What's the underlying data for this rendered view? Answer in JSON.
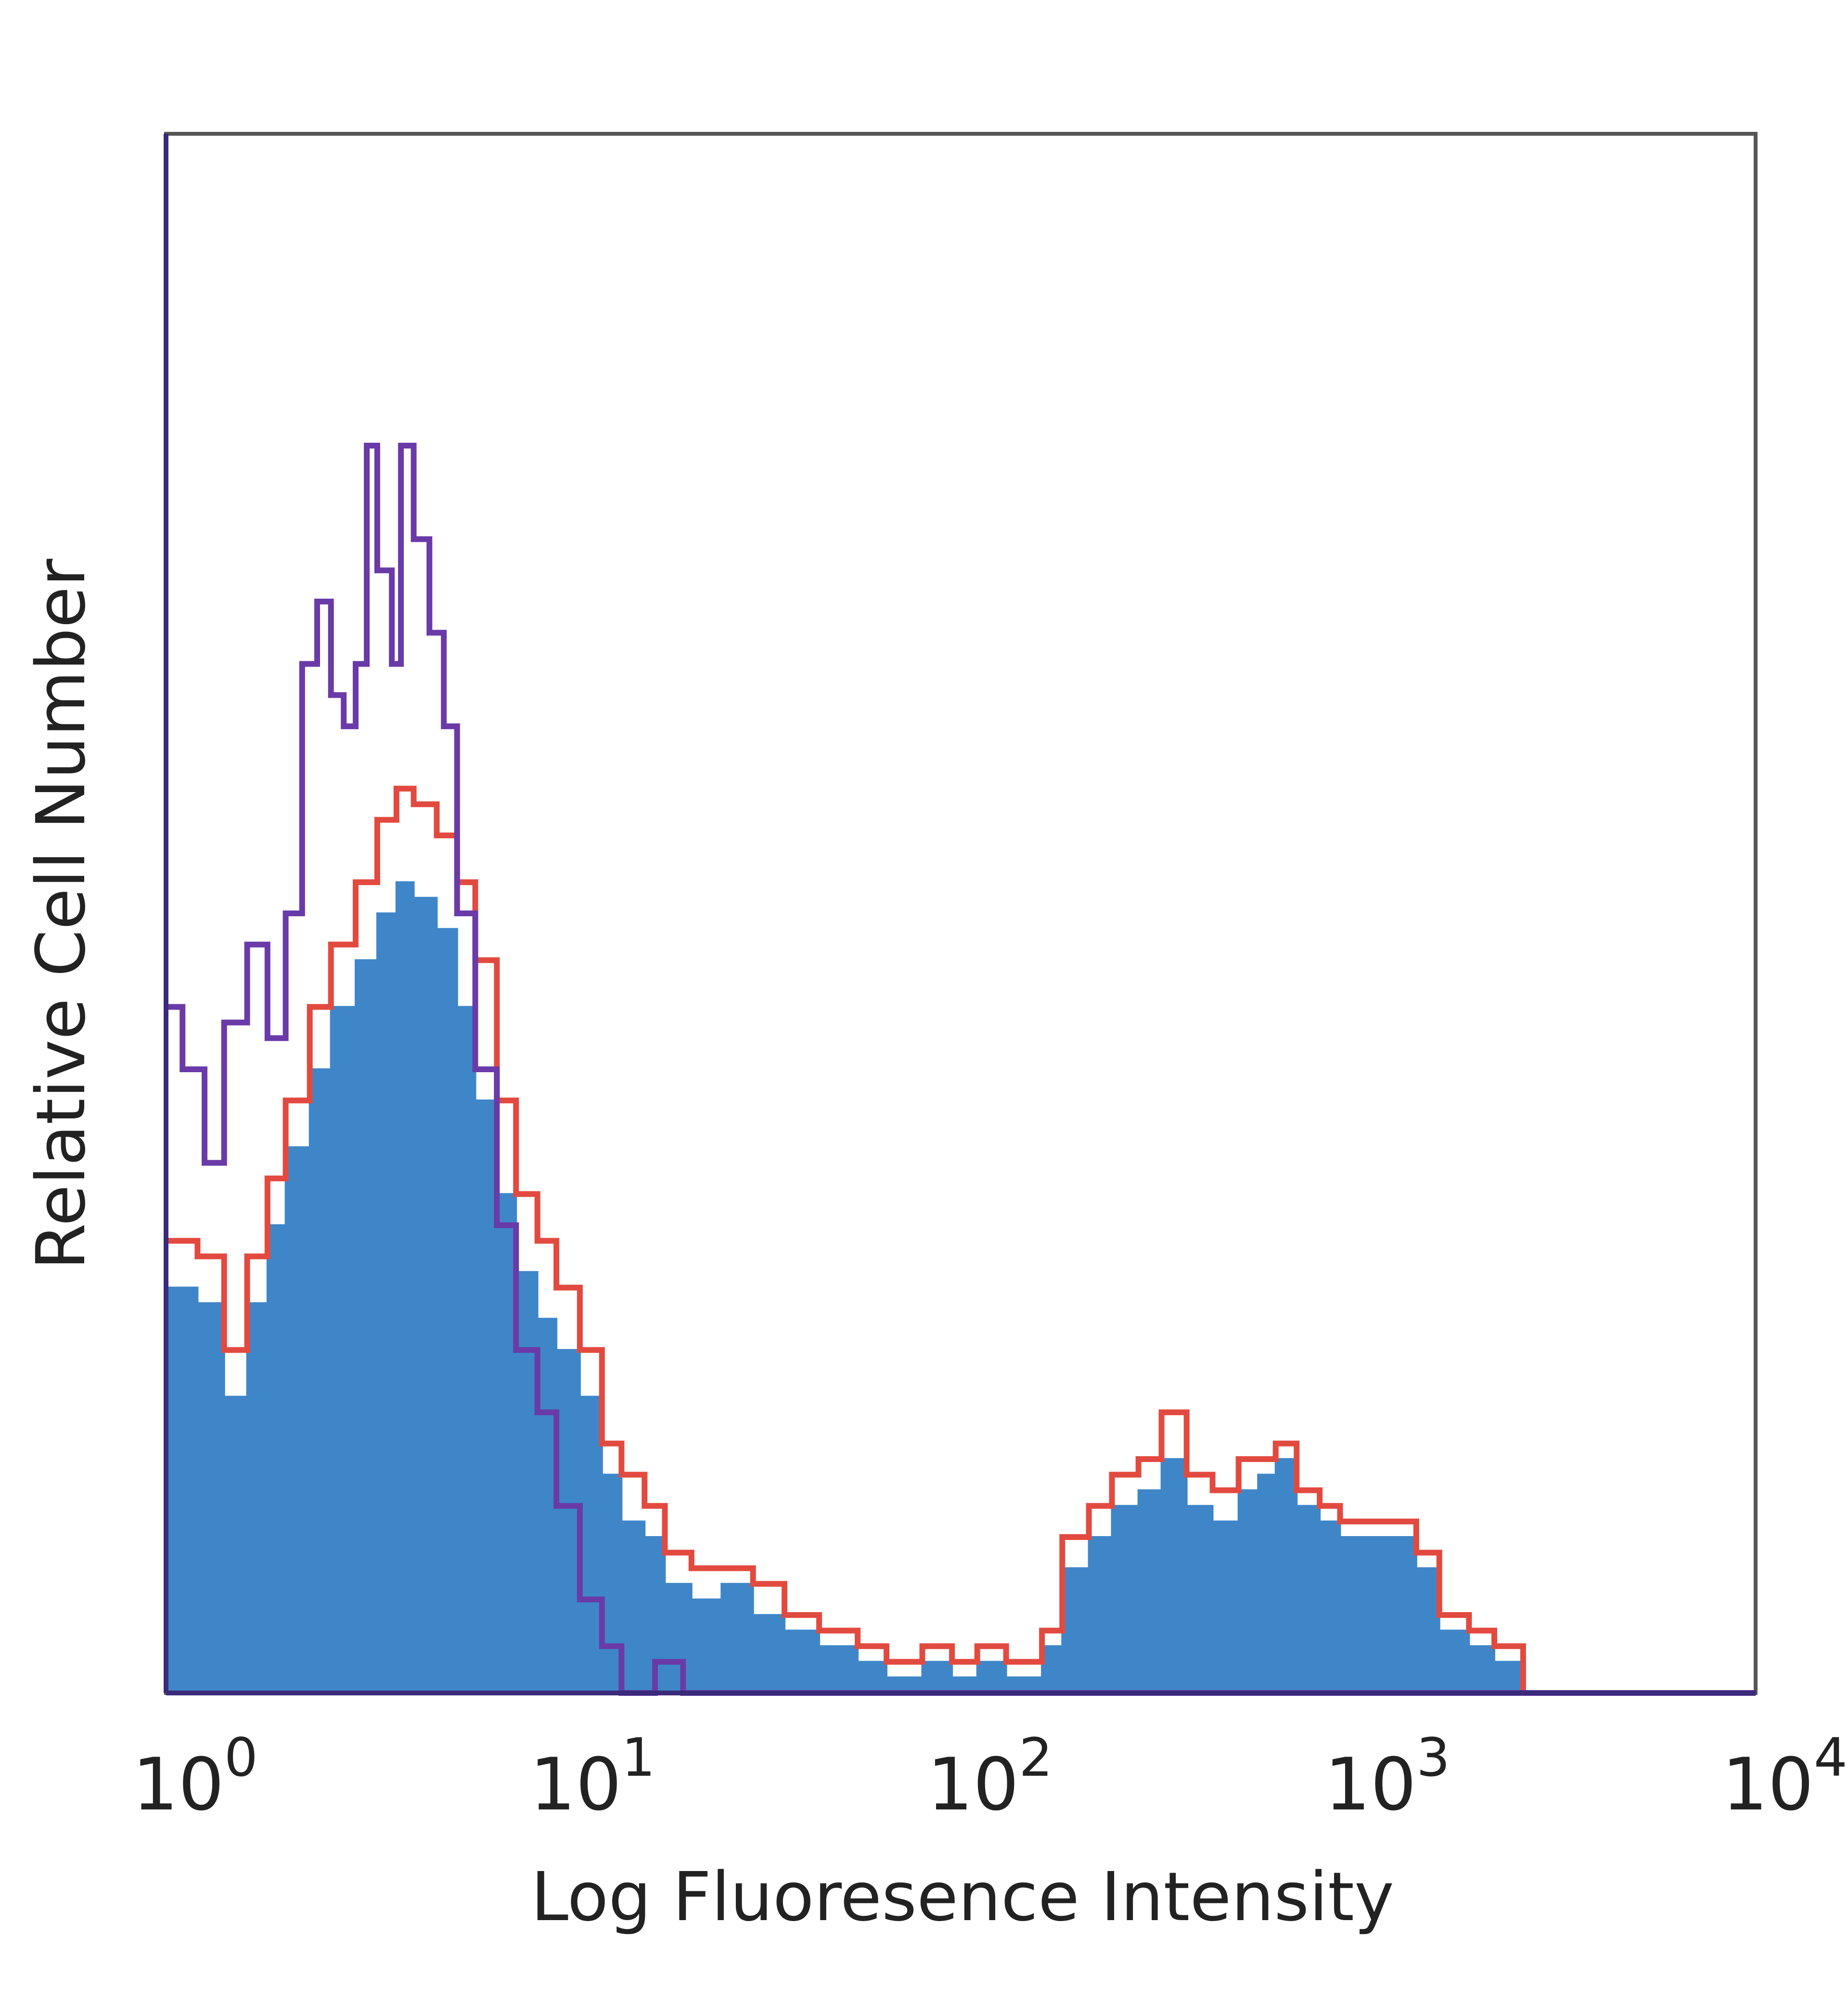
{
  "chart_data": {
    "type": "area",
    "xlabel": "Log Fluoresence Intensity",
    "ylabel": "Relative Cell Number",
    "xscale": "log",
    "xlim": [
      1,
      10000
    ],
    "ylim": [
      0,
      1
    ],
    "x_ticks": [
      {
        "value": 1,
        "base": "10",
        "exp": "0"
      },
      {
        "value": 10,
        "base": "10",
        "exp": "1"
      },
      {
        "value": 100,
        "base": "10",
        "exp": "2"
      },
      {
        "value": 1000,
        "base": "10",
        "exp": "3"
      },
      {
        "value": 10000,
        "base": "10",
        "exp": "4"
      }
    ],
    "grid": false,
    "legend": "none",
    "series": [
      {
        "style": "filled",
        "color": "#3f86c9",
        "points": [
          [
            1.0,
            0.26
          ],
          [
            1.2,
            0.25
          ],
          [
            1.4,
            0.19
          ],
          [
            1.6,
            0.25
          ],
          [
            1.8,
            0.3
          ],
          [
            2.0,
            0.35
          ],
          [
            2.3,
            0.4
          ],
          [
            2.6,
            0.44
          ],
          [
            3.0,
            0.47
          ],
          [
            3.4,
            0.5
          ],
          [
            3.8,
            0.52
          ],
          [
            4.2,
            0.51
          ],
          [
            4.8,
            0.49
          ],
          [
            5.4,
            0.44
          ],
          [
            6.0,
            0.38
          ],
          [
            6.8,
            0.32
          ],
          [
            7.6,
            0.27
          ],
          [
            8.6,
            0.24
          ],
          [
            9.6,
            0.22
          ],
          [
            11,
            0.19
          ],
          [
            12.5,
            0.14
          ],
          [
            14,
            0.11
          ],
          [
            16,
            0.1
          ],
          [
            18,
            0.07
          ],
          [
            21,
            0.06
          ],
          [
            25,
            0.07
          ],
          [
            30,
            0.05
          ],
          [
            36,
            0.04
          ],
          [
            44,
            0.03
          ],
          [
            55,
            0.02
          ],
          [
            65,
            0.01
          ],
          [
            80,
            0.02
          ],
          [
            95,
            0.01
          ],
          [
            110,
            0.02
          ],
          [
            130,
            0.01
          ],
          [
            160,
            0.03
          ],
          [
            180,
            0.08
          ],
          [
            210,
            0.1
          ],
          [
            240,
            0.12
          ],
          [
            280,
            0.13
          ],
          [
            320,
            0.15
          ],
          [
            370,
            0.12
          ],
          [
            430,
            0.11
          ],
          [
            500,
            0.13
          ],
          [
            560,
            0.14
          ],
          [
            620,
            0.15
          ],
          [
            700,
            0.12
          ],
          [
            800,
            0.11
          ],
          [
            900,
            0.1
          ],
          [
            1000,
            0.1
          ],
          [
            1200,
            0.1
          ],
          [
            1400,
            0.08
          ],
          [
            1600,
            0.04
          ],
          [
            1900,
            0.03
          ],
          [
            2200,
            0.02
          ],
          [
            2600,
            0.0
          ],
          [
            10000,
            0.0
          ]
        ]
      },
      {
        "style": "line",
        "color": "#e24a3f",
        "points": [
          [
            1.0,
            0.29
          ],
          [
            1.2,
            0.28
          ],
          [
            1.4,
            0.22
          ],
          [
            1.6,
            0.28
          ],
          [
            1.8,
            0.33
          ],
          [
            2.0,
            0.38
          ],
          [
            2.3,
            0.44
          ],
          [
            2.6,
            0.48
          ],
          [
            3.0,
            0.52
          ],
          [
            3.4,
            0.56
          ],
          [
            3.8,
            0.58
          ],
          [
            4.2,
            0.57
          ],
          [
            4.8,
            0.55
          ],
          [
            5.4,
            0.52
          ],
          [
            6.0,
            0.47
          ],
          [
            6.8,
            0.38
          ],
          [
            7.6,
            0.32
          ],
          [
            8.6,
            0.29
          ],
          [
            9.6,
            0.26
          ],
          [
            11,
            0.22
          ],
          [
            12.5,
            0.16
          ],
          [
            14,
            0.14
          ],
          [
            16,
            0.12
          ],
          [
            18,
            0.09
          ],
          [
            21,
            0.08
          ],
          [
            25,
            0.08
          ],
          [
            30,
            0.07
          ],
          [
            36,
            0.05
          ],
          [
            44,
            0.04
          ],
          [
            55,
            0.03
          ],
          [
            65,
            0.02
          ],
          [
            80,
            0.03
          ],
          [
            95,
            0.02
          ],
          [
            110,
            0.03
          ],
          [
            130,
            0.02
          ],
          [
            160,
            0.04
          ],
          [
            180,
            0.1
          ],
          [
            210,
            0.12
          ],
          [
            240,
            0.14
          ],
          [
            280,
            0.15
          ],
          [
            320,
            0.18
          ],
          [
            370,
            0.14
          ],
          [
            430,
            0.13
          ],
          [
            500,
            0.15
          ],
          [
            560,
            0.15
          ],
          [
            620,
            0.16
          ],
          [
            700,
            0.13
          ],
          [
            800,
            0.12
          ],
          [
            900,
            0.11
          ],
          [
            1000,
            0.11
          ],
          [
            1200,
            0.11
          ],
          [
            1400,
            0.09
          ],
          [
            1600,
            0.05
          ],
          [
            1900,
            0.04
          ],
          [
            2200,
            0.03
          ],
          [
            2600,
            0.0
          ],
          [
            10000,
            0.0
          ]
        ]
      },
      {
        "style": "line",
        "color": "#6a3aa8",
        "points": [
          [
            1.0,
            0.44
          ],
          [
            1.1,
            0.4
          ],
          [
            1.25,
            0.34
          ],
          [
            1.4,
            0.43
          ],
          [
            1.6,
            0.48
          ],
          [
            1.8,
            0.42
          ],
          [
            2.0,
            0.5
          ],
          [
            2.2,
            0.66
          ],
          [
            2.4,
            0.7
          ],
          [
            2.6,
            0.64
          ],
          [
            2.8,
            0.62
          ],
          [
            3.0,
            0.66
          ],
          [
            3.2,
            0.8
          ],
          [
            3.4,
            0.72
          ],
          [
            3.7,
            0.66
          ],
          [
            3.9,
            0.8
          ],
          [
            4.2,
            0.74
          ],
          [
            4.6,
            0.68
          ],
          [
            5.0,
            0.62
          ],
          [
            5.4,
            0.5
          ],
          [
            6.0,
            0.4
          ],
          [
            6.8,
            0.3
          ],
          [
            7.6,
            0.22
          ],
          [
            8.6,
            0.18
          ],
          [
            9.6,
            0.12
          ],
          [
            11,
            0.06
          ],
          [
            12.5,
            0.03
          ],
          [
            14,
            0.0
          ],
          [
            17,
            0.02
          ],
          [
            20,
            0.0
          ],
          [
            10000,
            0.0
          ]
        ]
      }
    ]
  }
}
